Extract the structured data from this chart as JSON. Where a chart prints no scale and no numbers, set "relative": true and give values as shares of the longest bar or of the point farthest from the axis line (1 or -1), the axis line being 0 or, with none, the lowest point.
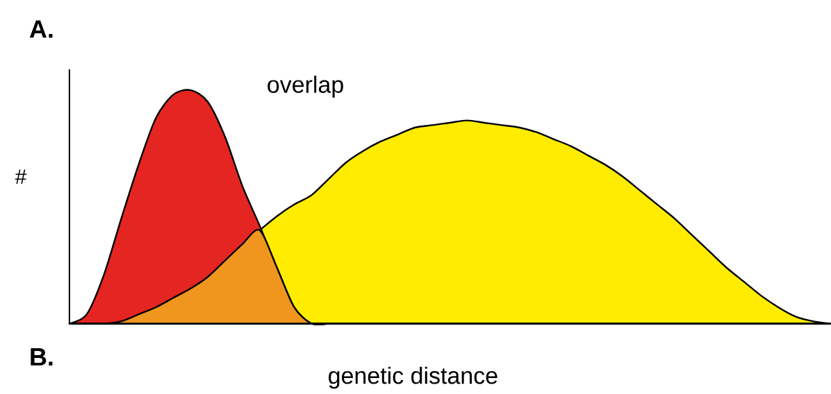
{
  "chart_data": {
    "type": "area",
    "relative": true,
    "xlabel": "genetic distance",
    "ylabel": "#",
    "annotations": [
      "A.",
      "overlap",
      "B."
    ],
    "categories": [
      null,
      null,
      null,
      null,
      null,
      null,
      null,
      null,
      null,
      null,
      null,
      null,
      null,
      null,
      null,
      null,
      null,
      null,
      null,
      null,
      null,
      null,
      null,
      null,
      null,
      null,
      null,
      null,
      null,
      null,
      null,
      null,
      null,
      null,
      null,
      null,
      null,
      null,
      null,
      null,
      null,
      null,
      null,
      null,
      null
    ],
    "series": [
      {
        "color": "#ffec00",
        "values": [
          0,
          0,
          0,
          0.01,
          0.04,
          0.07,
          0.11,
          0.15,
          0.2,
          0.27,
          0.34,
          0.4,
          0.46,
          0.51,
          0.55,
          0.62,
          0.69,
          0.74,
          0.78,
          0.81,
          0.84,
          0.85,
          0.86,
          0.87,
          0.86,
          0.85,
          0.84,
          0.82,
          0.79,
          0.76,
          0.72,
          0.68,
          0.63,
          0.57,
          0.51,
          0.45,
          0.38,
          0.31,
          0.24,
          0.18,
          0.12,
          0.07,
          0.03,
          0.01,
          0
        ]
      },
      {
        "color": "#e52521",
        "values": [
          0,
          0.04,
          0.21,
          0.45,
          0.68,
          0.88,
          0.98,
          1.0,
          0.95,
          0.8,
          0.59,
          0.42,
          0.24,
          0.07,
          0,
          0,
          0,
          0,
          0,
          0,
          0,
          0,
          0,
          0,
          0,
          0,
          0,
          0,
          0,
          0,
          0,
          0,
          0,
          0,
          0,
          0,
          0,
          0,
          0,
          0,
          0,
          0,
          0,
          0,
          0
        ]
      },
      {
        "color": "#f0961e",
        "values": [
          0,
          0,
          0,
          0.01,
          0.04,
          0.07,
          0.11,
          0.15,
          0.2,
          0.27,
          0.34,
          0.4,
          0.24,
          0.07,
          0,
          0,
          0,
          0,
          0,
          0,
          0,
          0,
          0,
          0,
          0,
          0,
          0,
          0,
          0,
          0,
          0,
          0,
          0,
          0,
          0,
          0,
          0,
          0,
          0,
          0,
          0,
          0,
          0,
          0,
          0
        ]
      }
    ]
  }
}
